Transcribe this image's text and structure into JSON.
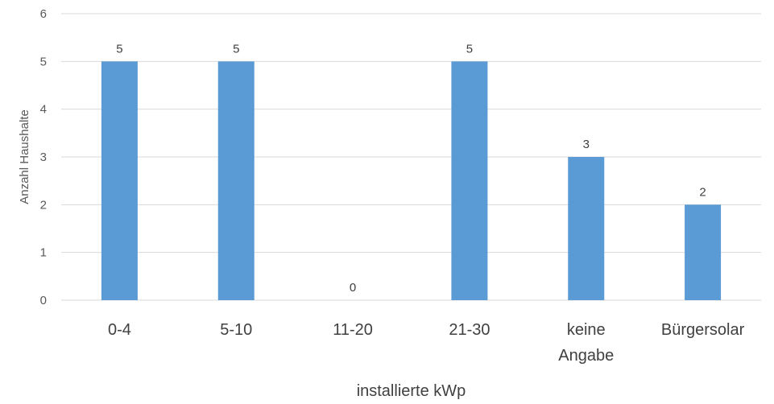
{
  "chart_data": {
    "type": "bar",
    "categories": [
      [
        "0-4"
      ],
      [
        "5-10"
      ],
      [
        "11-20"
      ],
      [
        "21-30"
      ],
      [
        "keine",
        "Angabe"
      ],
      [
        "Bürgersolar"
      ]
    ],
    "series": [
      {
        "values": [
          5,
          5,
          0,
          5,
          3,
          2
        ]
      }
    ],
    "data_labels": [
      "5",
      "5",
      "0",
      "5",
      "3",
      "2"
    ],
    "xlabel": "installierte kWp",
    "ylabel": "Anzahl Haushalte",
    "ylim": [
      0,
      6
    ],
    "yticks": [
      "0",
      "1",
      "2",
      "3",
      "4",
      "5",
      "6"
    ],
    "grid": true,
    "legend": "none",
    "colors": {
      "bar": "#5b9bd5",
      "grid": "#d9d9d9"
    }
  }
}
